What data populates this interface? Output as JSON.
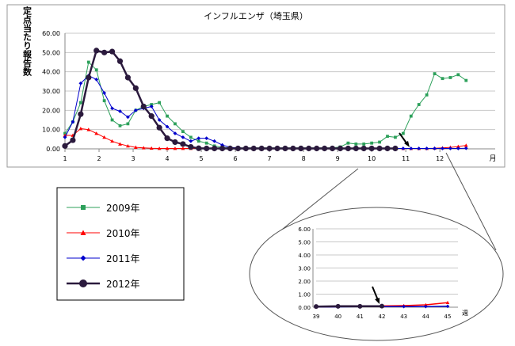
{
  "chart_data": [
    {
      "type": "line",
      "title": "インフルエンザ（埼玉県）",
      "ylabel": "定点当たり報告数",
      "xlabel": "月",
      "x_ticks": [
        "1",
        "2",
        "3",
        "4",
        "5",
        "6",
        "7",
        "8",
        "9",
        "10",
        "11",
        "12"
      ],
      "ylim": [
        0,
        60
      ],
      "y_ticks": [
        "0.00",
        "10.00",
        "20.00",
        "30.00",
        "40.00",
        "50.00",
        "60.00"
      ],
      "grid": true,
      "x_unit": "week of year (1-52, month axis)",
      "series": [
        {
          "name": "2009年",
          "color": "#2ca05a",
          "marker": "square",
          "x": [
            1,
            2,
            3,
            4,
            5,
            6,
            7,
            8,
            9,
            10,
            11,
            12,
            13,
            14,
            15,
            16,
            17,
            18,
            19,
            20,
            21,
            22,
            23,
            24,
            25,
            26,
            27,
            28,
            29,
            30,
            31,
            32,
            33,
            34,
            35,
            36,
            37,
            38,
            39,
            40,
            41,
            42,
            43,
            44,
            45,
            46,
            47,
            48,
            49,
            50,
            51,
            52
          ],
          "values": [
            8,
            14,
            24,
            45,
            41,
            25,
            15,
            12,
            13,
            20,
            22,
            23,
            24,
            17,
            13,
            9,
            6,
            4,
            3,
            1.5,
            0.8,
            0.5,
            0.5,
            0.5,
            0.5,
            0.5,
            0.5,
            0.5,
            0.5,
            0.5,
            0.5,
            0.5,
            0.5,
            0.5,
            0.5,
            1,
            3,
            2.5,
            2.5,
            3,
            3.5,
            6.5,
            6,
            8,
            17,
            23,
            28,
            39,
            36.5,
            37,
            38.5,
            35.5
          ]
        },
        {
          "name": "2010年",
          "color": "#ff0000",
          "marker": "triangle",
          "x": [
            1,
            2,
            3,
            4,
            5,
            6,
            7,
            8,
            9,
            10,
            11,
            12,
            13,
            14,
            15,
            16,
            17,
            18,
            19,
            20,
            21,
            22,
            23,
            24,
            25,
            26,
            27,
            28,
            29,
            30,
            31,
            32,
            33,
            34,
            35,
            36,
            37,
            38,
            39,
            40,
            41,
            42,
            43,
            44,
            45,
            46,
            47,
            48,
            49,
            50,
            51,
            52
          ],
          "values": [
            7,
            7,
            10.5,
            10,
            8,
            6,
            4,
            2.5,
            1.5,
            0.8,
            0.5,
            0.3,
            0.2,
            0.2,
            0.2,
            0.2,
            0.2,
            0.2,
            0.2,
            0.2,
            0.2,
            0.2,
            0.2,
            0.2,
            0.2,
            0.2,
            0.2,
            0.2,
            0.2,
            0.2,
            0.2,
            0.2,
            0.2,
            0.2,
            0.2,
            0.2,
            0.2,
            0.2,
            0.2,
            0.2,
            0.2,
            0.2,
            0.2,
            0.2,
            0.2,
            0.2,
            0.2,
            0.3,
            0.5,
            0.8,
            1.2,
            1.8
          ]
        },
        {
          "name": "2011年",
          "color": "#0000cc",
          "marker": "diamond",
          "x": [
            1,
            2,
            3,
            4,
            5,
            6,
            7,
            8,
            9,
            10,
            11,
            12,
            13,
            14,
            15,
            16,
            17,
            18,
            19,
            20,
            21,
            22,
            23,
            24,
            25,
            26,
            27,
            28,
            29,
            30,
            31,
            32,
            33,
            34,
            35,
            36,
            37,
            38,
            39,
            40,
            41,
            42,
            43,
            44,
            45,
            46,
            47,
            48,
            49,
            50,
            51,
            52
          ],
          "values": [
            6,
            14,
            34,
            38,
            36,
            29,
            21,
            19.5,
            16.5,
            20,
            21,
            22,
            15,
            11.5,
            8,
            6,
            4,
            5.5,
            5.5,
            4,
            2,
            0.8,
            0.5,
            0.3,
            0.3,
            0.2,
            0.2,
            0.2,
            0.2,
            0.2,
            0.2,
            0.2,
            0.2,
            0.2,
            0.2,
            0.2,
            0.2,
            0.2,
            0.2,
            0.2,
            0.2,
            0.2,
            0.2,
            0.2,
            0.2,
            0.2,
            0.2,
            0.2,
            0.2,
            0.2,
            0.2,
            0.3
          ]
        },
        {
          "name": "2012年",
          "color": "#2b1a3d",
          "marker": "circle",
          "x": [
            1,
            2,
            3,
            4,
            5,
            6,
            7,
            8,
            9,
            10,
            11,
            12,
            13,
            14,
            15,
            16,
            17,
            18,
            19,
            20,
            21,
            22,
            23,
            24,
            25,
            26,
            27,
            28,
            29,
            30,
            31,
            32,
            33,
            34,
            35,
            36,
            37,
            38,
            39,
            40,
            41,
            42,
            43
          ],
          "values": [
            1.5,
            4.5,
            18,
            37,
            51,
            50,
            50.5,
            45.5,
            37,
            31.5,
            22,
            17,
            11,
            5.5,
            3.5,
            2.5,
            1,
            0.3,
            0.2,
            0.2,
            0.2,
            0.2,
            0.2,
            0.2,
            0.2,
            0.2,
            0.2,
            0.2,
            0.2,
            0.2,
            0.2,
            0.2,
            0.2,
            0.2,
            0.2,
            0.2,
            0.2,
            0.2,
            0.2,
            0.2,
            0.2,
            0.2,
            0.2
          ]
        }
      ],
      "annotation": "arrow pointing at latest 2012 week"
    },
    {
      "type": "line",
      "title": "",
      "xlabel": "週",
      "categories": [
        "39",
        "40",
        "41",
        "42",
        "43",
        "44",
        "45"
      ],
      "ylim": [
        0,
        6
      ],
      "y_ticks": [
        "0.00",
        "1.00",
        "2.00",
        "3.00",
        "4.00",
        "5.00",
        "6.00"
      ],
      "grid": true,
      "series": [
        {
          "name": "2010年",
          "color": "#ff0000",
          "values": [
            0.02,
            0.05,
            0.08,
            0.1,
            0.12,
            0.18,
            0.35
          ]
        },
        {
          "name": "2011年",
          "color": "#0000cc",
          "values": [
            0.02,
            0.03,
            0.04,
            0.05,
            0.05,
            0.05,
            0.07
          ]
        },
        {
          "name": "2012年",
          "color": "#2b1a3d",
          "values": [
            0.05,
            0.07,
            0.07,
            0.08,
            null,
            null,
            null
          ]
        }
      ],
      "annotation": "arrow pointing at week 42"
    }
  ],
  "legend": [
    {
      "label": "2009年",
      "color": "#2ca05a",
      "marker": "square"
    },
    {
      "label": "2010年",
      "color": "#ff0000",
      "marker": "triangle"
    },
    {
      "label": "2011年",
      "color": "#0000cc",
      "marker": "diamond"
    },
    {
      "label": "2012年",
      "color": "#2b1a3d",
      "marker": "circle"
    }
  ]
}
